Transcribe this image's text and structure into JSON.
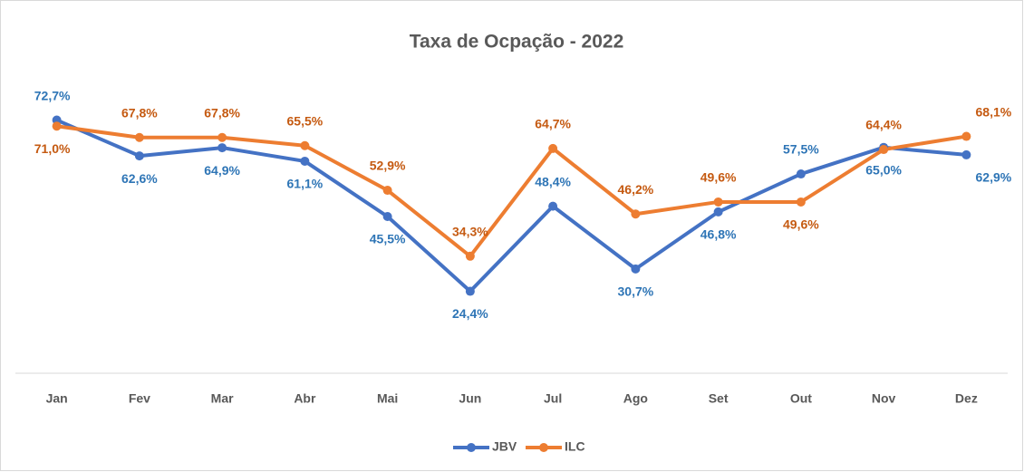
{
  "chart_data": {
    "type": "line",
    "title": "Taxa de Ocpação - 2022",
    "categories": [
      "Jan",
      "Fev",
      "Mar",
      "Abr",
      "Mai",
      "Jun",
      "Jul",
      "Ago",
      "Set",
      "Out",
      "Nov",
      "Dez"
    ],
    "ylim": [
      0,
      80
    ],
    "legend": "bottom",
    "series": [
      {
        "name": "JBV",
        "color": "#4472c4",
        "values": [
          72.7,
          62.6,
          64.9,
          61.1,
          45.5,
          24.4,
          48.4,
          30.7,
          46.8,
          57.5,
          65.0,
          62.9
        ],
        "value_labels": [
          "72,7%",
          "62,6%",
          "64,9%",
          "61,1%",
          "45,5%",
          "24,4%",
          "48,4%",
          "30,7%",
          "46,8%",
          "57,5%",
          "65,0%",
          "62,9%"
        ]
      },
      {
        "name": "ILC",
        "color": "#ed7d31",
        "values": [
          71.0,
          67.8,
          67.8,
          65.5,
          52.9,
          34.3,
          64.7,
          46.2,
          49.6,
          49.6,
          64.4,
          68.1
        ],
        "value_labels": [
          "71,0%",
          "67,8%",
          "67,8%",
          "65,5%",
          "52,9%",
          "34,3%",
          "64,7%",
          "46,2%",
          "49,6%",
          "49,6%",
          "64,4%",
          "68,1%"
        ]
      }
    ]
  }
}
